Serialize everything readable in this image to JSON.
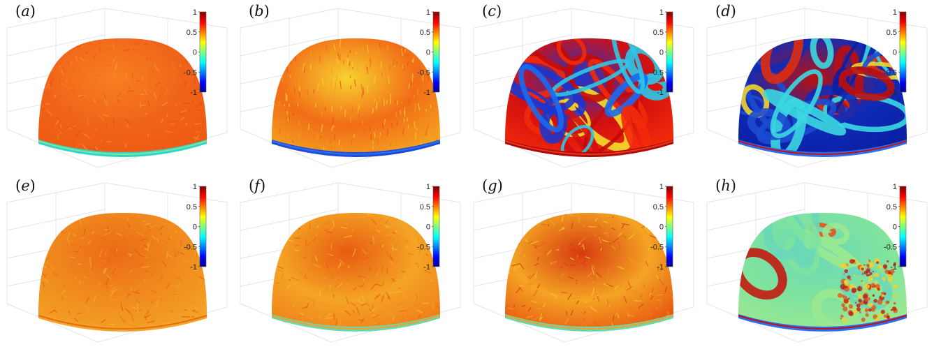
{
  "figure": {
    "colorbar": {
      "colormap": "jet",
      "ticks": [
        "1",
        "0.5",
        "0",
        "-0.5",
        "-1"
      ]
    },
    "panels": [
      {
        "label": "(a)",
        "letter": "a",
        "palette": [
          "#f0641a",
          "#ee5a12",
          "#f78020",
          "#e84c10",
          "#f69a2b"
        ],
        "band": [
          "#2fd6c4",
          "#7ee3a8"
        ],
        "pattern": "fine"
      },
      {
        "label": "(b)",
        "letter": "b",
        "palette": [
          "#f26c17",
          "#f4a221",
          "#f9cf2b",
          "#e95312",
          "#f7d330"
        ],
        "band": [
          "#1f4bd6",
          "#2a6ff2"
        ],
        "pattern": "gradient"
      },
      {
        "label": "(c)",
        "letter": "c",
        "palette": [
          "#d21010",
          "#f22a0a",
          "#1d35cc",
          "#1a6af0",
          "#f3de2b",
          "#c20a0a",
          "#2bc8e8"
        ],
        "band": [
          "#b10b0b",
          "#e33a18"
        ],
        "pattern": "swirl"
      },
      {
        "label": "(d)",
        "letter": "d",
        "palette": [
          "#0e2bb8",
          "#0a1fa3",
          "#b91010",
          "#de2c10",
          "#3bd8e0",
          "#f0d52b",
          "#1c4bd0"
        ],
        "band": [
          "#2a6ff2",
          "#c31212"
        ],
        "pattern": "swirl-blue"
      },
      {
        "label": "(e)",
        "letter": "e",
        "palette": [
          "#f08b1f",
          "#f2a224",
          "#ec6a15",
          "#f5b12a",
          "#e85612"
        ],
        "band": [
          "#f3a325",
          "#e96a16"
        ],
        "pattern": "fine"
      },
      {
        "label": "(f)",
        "letter": "f",
        "palette": [
          "#f4a424",
          "#f0801c",
          "#e85a12",
          "#f6c02c",
          "#ea6c16"
        ],
        "band": [
          "#6ad7b0",
          "#f0a126"
        ],
        "pattern": "fine"
      },
      {
        "label": "(g)",
        "letter": "g",
        "palette": [
          "#f4a424",
          "#e85a12",
          "#d63a10",
          "#f6cc2e",
          "#ee8a1f"
        ],
        "band": [
          "#6ad7b0",
          "#f0a126"
        ],
        "pattern": "fine"
      },
      {
        "label": "(h)",
        "letter": "h",
        "palette": [
          "#7fe39e",
          "#9be890",
          "#6ad8b8",
          "#f4d22c",
          "#e5531a",
          "#c21a10"
        ],
        "band": [
          "#2a6ff2",
          "#c31212"
        ],
        "pattern": "green"
      }
    ]
  }
}
